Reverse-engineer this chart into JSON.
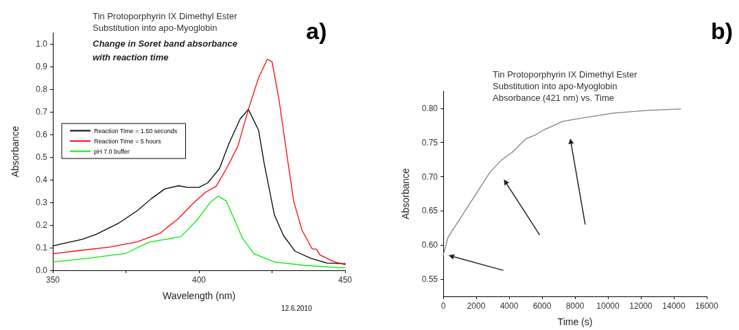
{
  "chart_data": [
    {
      "type": "line",
      "title": "Tin Protoporphyrin IX Dimethyl Ester\nSubstitution into apo-Myoglobin",
      "subtitle": "Change in Soret band absorbance\nwith reaction time",
      "xlabel": "Wavelength (nm)",
      "ylabel": "Absorbance",
      "annotations": [
        "a)",
        "12.6.2010"
      ],
      "xlim": [
        350,
        450
      ],
      "xticks": [
        350,
        {
          "value": 375,
          "label": null
        },
        400,
        {
          "value": 425,
          "label": null
        },
        450
      ],
      "ylim": [
        0,
        1.05
      ],
      "yticks": [
        {
          "value": 0,
          "label": "0.0"
        },
        0.1,
        0.2,
        0.3,
        0.4,
        0.5,
        0.6,
        0.7,
        0.8,
        0.9,
        {
          "value": 1,
          "label": "1.0"
        }
      ],
      "legend": "top left",
      "marker": "none",
      "line_style": "solid",
      "series": [
        {
          "name": "Reaction Time = 1.50 seconds",
          "color": "#000000",
          "x": [
            350,
            355.5,
            360,
            364.8,
            372.7,
            379,
            383.6,
            388.3,
            393,
            396,
            400,
            403,
            407,
            410.2,
            414.1,
            416.9,
            420.4,
            422.3,
            425.8,
            428.9,
            432.8,
            438.3,
            443.8,
            450
          ],
          "values": [
            0.108,
            0.124,
            0.137,
            0.159,
            0.21,
            0.265,
            0.316,
            0.36,
            0.374,
            0.367,
            0.367,
            0.387,
            0.45,
            0.559,
            0.67,
            0.712,
            0.619,
            0.473,
            0.245,
            0.154,
            0.085,
            0.053,
            0.032,
            0.029
          ]
        },
        {
          "name": "Reaction Time = 5 hours",
          "color": "#ff0000",
          "x": [
            350,
            359.4,
            369.5,
            379,
            386.7,
            393,
            398.4,
            402.3,
            405.9,
            409.4,
            413.3,
            416.9,
            420.4,
            423.4,
            425,
            427.3,
            430.5,
            432.4,
            435.2,
            438.7,
            440.2,
            441.4,
            446,
            450
          ],
          "values": [
            0.073,
            0.088,
            0.103,
            0.126,
            0.164,
            0.23,
            0.301,
            0.346,
            0.372,
            0.45,
            0.549,
            0.712,
            0.852,
            0.934,
            0.922,
            0.761,
            0.473,
            0.306,
            0.179,
            0.095,
            0.093,
            0.068,
            0.039,
            0.025
          ]
        },
        {
          "name": "pH 7.0 buffer",
          "color": "#00ee00",
          "x": [
            350,
            361.7,
            375,
            382.8,
            393.8,
            399.2,
            403.9,
            406.6,
            409.4,
            414.8,
            418.8,
            425.8,
            436,
            450
          ],
          "values": [
            0.037,
            0.053,
            0.075,
            0.124,
            0.149,
            0.22,
            0.301,
            0.328,
            0.306,
            0.144,
            0.073,
            0.037,
            0.022,
            0.01
          ]
        }
      ]
    },
    {
      "type": "line",
      "title": "Tin Protoporphyrin IX Dimethyl Ester\nSubstitution into apo-Myoglobin\nAbsorbance (421 nm) vs. Time",
      "xlabel": "Time (s)",
      "ylabel": "Absorbance",
      "annotations": [
        "b)"
      ],
      "xlim": [
        0,
        16000
      ],
      "xticks": [
        0,
        2000,
        4000,
        6000,
        8000,
        10000,
        12000,
        14000,
        16000
      ],
      "ylim": [
        0.525,
        0.825
      ],
      "yticks": [
        0.55,
        {
          "value": 0.6,
          "label": "0.60"
        },
        0.65,
        {
          "value": 0.7,
          "label": "0.70"
        },
        0.75,
        {
          "value": 0.8,
          "label": "0.80"
        }
      ],
      "marker": "none",
      "line_style": "solid",
      "series": [
        {
          "color": "#808080",
          "x": [
            0,
            300,
            1570,
            2820,
            3510,
            4200,
            5040,
            5590,
            6150,
            7260,
            8230,
            10320,
            12400,
            14420
          ],
          "values": [
            0.585,
            0.612,
            0.659,
            0.706,
            0.724,
            0.736,
            0.756,
            0.761,
            0.769,
            0.781,
            0.785,
            0.793,
            0.797,
            0.799
          ]
        }
      ]
    }
  ]
}
